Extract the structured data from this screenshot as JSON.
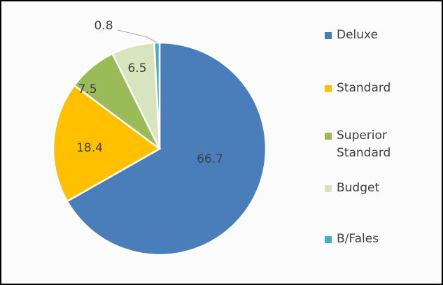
{
  "chart_data": {
    "type": "pie",
    "categories": [
      "Deluxe",
      "Standard",
      "Superior Standard",
      "Budget",
      "B/Fales"
    ],
    "values": [
      66.7,
      18.4,
      7.5,
      6.5,
      0.8
    ],
    "colors": [
      "#4a7ebb",
      "#ffc000",
      "#9bbb59",
      "#d7e4bd",
      "#4bacc6"
    ]
  }
}
